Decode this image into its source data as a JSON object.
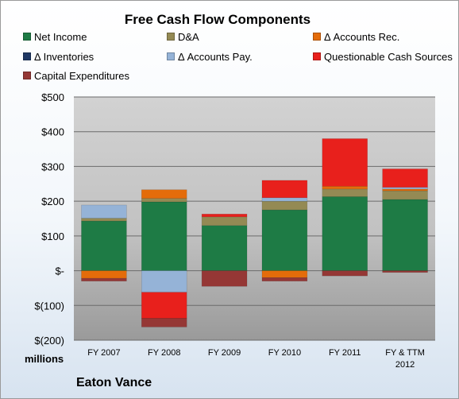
{
  "chart_data": {
    "type": "bar",
    "stacked": true,
    "title": "Free Cash Flow Components",
    "units_label": "millions",
    "categories": [
      "FY 2007",
      "FY 2008",
      "FY 2009",
      "FY 2010",
      "FY 2011",
      "FY & TTM 2012"
    ],
    "ylim": [
      -200,
      500
    ],
    "yticks": [
      {
        "value": 500,
        "label": "$500"
      },
      {
        "value": 400,
        "label": "$400"
      },
      {
        "value": 300,
        "label": "$300"
      },
      {
        "value": 200,
        "label": "$200"
      },
      {
        "value": 100,
        "label": "$100"
      },
      {
        "value": 0,
        "label": "$-"
      },
      {
        "value": -100,
        "label": "$(100)"
      },
      {
        "value": -200,
        "label": "$(200)"
      }
    ],
    "grid": true,
    "legend_position": "top",
    "series": [
      {
        "name": "Net Income",
        "color": "#1e7b45",
        "values": [
          143,
          198,
          130,
          175,
          213,
          205
        ]
      },
      {
        "name": "D&A",
        "color": "#948a54",
        "values": [
          8,
          10,
          25,
          25,
          22,
          25
        ]
      },
      {
        "name": "Δ Accounts Rec.",
        "color": "#e46c0a",
        "values": [
          -22,
          25,
          0,
          -20,
          8,
          5
        ]
      },
      {
        "name": "Δ Inventories",
        "color": "#1f3864",
        "values": [
          0,
          0,
          0,
          0,
          0,
          0
        ]
      },
      {
        "name": "Δ Accounts Pay.",
        "color": "#95b3d7",
        "values": [
          38,
          -62,
          0,
          10,
          0,
          5
        ]
      },
      {
        "name": "Questionable Cash Sources",
        "color": "#e8201c",
        "values": [
          0,
          -75,
          8,
          50,
          137,
          53
        ]
      },
      {
        "name": "Capital Expenditures",
        "color": "#953735",
        "values": [
          -8,
          -25,
          -45,
          -10,
          -15,
          -5
        ]
      }
    ]
  },
  "footer": {
    "company": "Eaton Vance"
  }
}
